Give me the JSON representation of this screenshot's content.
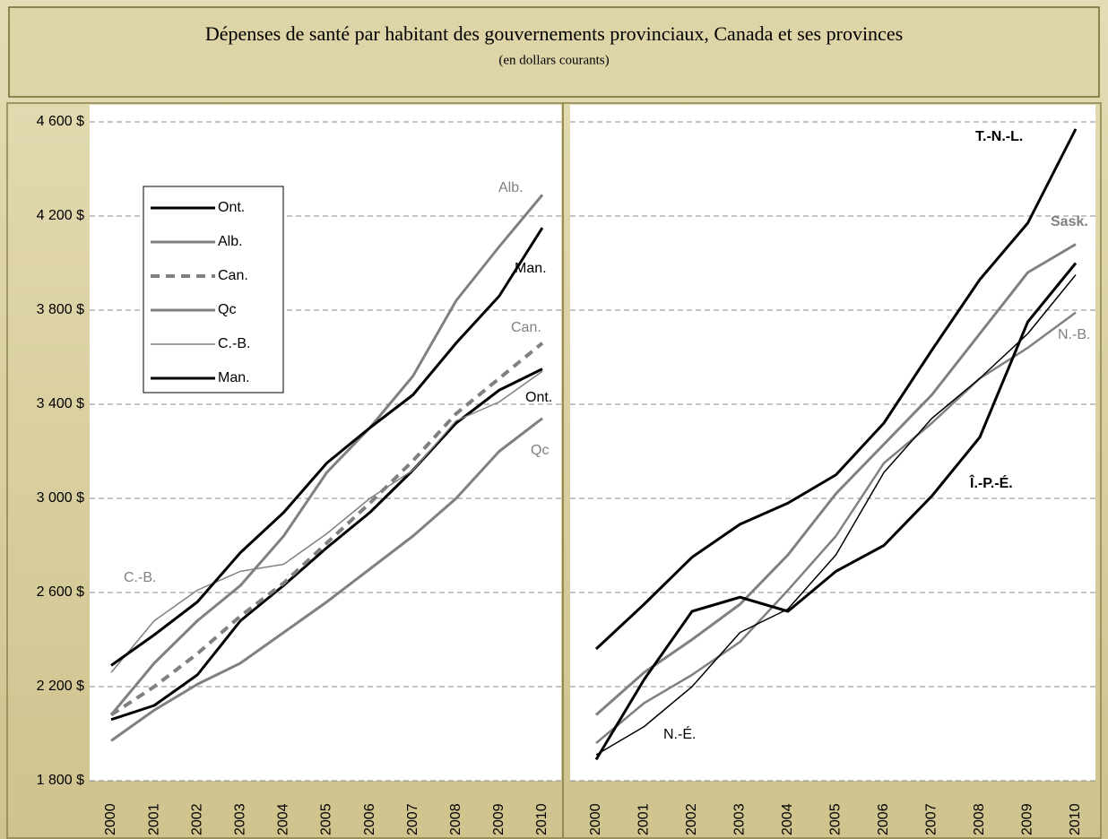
{
  "title": "Dépenses de santé par habitant des gouvernements provinciaux, Canada et ses provinces",
  "subtitle": "(en dollars courants)",
  "chart_data": [
    {
      "type": "line",
      "categories": [
        "2000",
        "2001",
        "2002",
        "2003",
        "2004",
        "2005",
        "2006",
        "2007",
        "2008",
        "2009",
        "2010"
      ],
      "ylim": [
        1800,
        4600
      ],
      "yticks": [
        {
          "value": 1800,
          "label": "1 800 $"
        },
        {
          "value": 2200,
          "label": "2 200 $"
        },
        {
          "value": 2600,
          "label": "2 600 $"
        },
        {
          "value": 3000,
          "label": "3 000 $"
        },
        {
          "value": 3400,
          "label": "3 400 $"
        },
        {
          "value": 3800,
          "label": "3 800 $"
        },
        {
          "value": 4200,
          "label": "4 200 $"
        },
        {
          "value": 4600,
          "label": "4 600 $"
        }
      ],
      "grid": true,
      "legend": true,
      "series": [
        {
          "name": "Ont.",
          "color": "#000000",
          "width": 3,
          "dash": false,
          "values": [
            2060,
            2120,
            2250,
            2480,
            2630,
            2790,
            2940,
            3120,
            3320,
            3460,
            3550
          ]
        },
        {
          "name": "Alb.",
          "color": "#808080",
          "width": 3,
          "dash": false,
          "values": [
            2080,
            2300,
            2480,
            2630,
            2840,
            3110,
            3300,
            3520,
            3840,
            4070,
            4290
          ]
        },
        {
          "name": "Can.",
          "color": "#808080",
          "width": 4,
          "dash": true,
          "values": [
            2080,
            2200,
            2340,
            2500,
            2640,
            2810,
            2980,
            3160,
            3360,
            3510,
            3660
          ]
        },
        {
          "name": "Qc",
          "color": "#808080",
          "width": 3,
          "dash": false,
          "values": [
            1970,
            2100,
            2210,
            2300,
            2430,
            2560,
            2700,
            2840,
            3000,
            3200,
            3340
          ]
        },
        {
          "name": "C.-B.",
          "color": "#808080",
          "width": 1.5,
          "dash": false,
          "values": [
            2260,
            2480,
            2610,
            2690,
            2720,
            2850,
            3000,
            3120,
            3330,
            3410,
            3540
          ]
        },
        {
          "name": "Man.",
          "color": "#000000",
          "width": 3,
          "dash": false,
          "values": [
            2290,
            2420,
            2560,
            2770,
            2940,
            3150,
            3300,
            3440,
            3660,
            3860,
            4150
          ]
        }
      ]
    },
    {
      "type": "line",
      "categories": [
        "2000",
        "2001",
        "2002",
        "2003",
        "2004",
        "2005",
        "2006",
        "2007",
        "2008",
        "2009",
        "2010"
      ],
      "ylim": [
        1800,
        4600
      ],
      "yticks": [
        1800,
        2200,
        2600,
        3000,
        3400,
        3800,
        4200,
        4600
      ],
      "grid": true,
      "legend": false,
      "series": [
        {
          "name": "T.-N.-L.",
          "color": "#000000",
          "width": 3,
          "dash": false,
          "values": [
            2360,
            2550,
            2750,
            2890,
            2980,
            3100,
            3320,
            3630,
            3930,
            4170,
            4570
          ]
        },
        {
          "name": "Sask.",
          "color": "#808080",
          "width": 3,
          "dash": false,
          "values": [
            2080,
            2260,
            2400,
            2550,
            2760,
            3020,
            3230,
            3440,
            3700,
            3960,
            4080
          ]
        },
        {
          "name": "N.-B.",
          "color": "#808080",
          "width": 2.5,
          "dash": false,
          "values": [
            1960,
            2130,
            2250,
            2390,
            2610,
            2840,
            3150,
            3320,
            3510,
            3640,
            3790
          ]
        },
        {
          "name": "Î.-P.-É.",
          "color": "#000000",
          "width": 3,
          "dash": false,
          "values": [
            1890,
            2230,
            2520,
            2580,
            2520,
            2690,
            2800,
            3010,
            3260,
            3750,
            4000
          ]
        },
        {
          "name": "N.-É.",
          "color": "#000000",
          "width": 1.5,
          "dash": false,
          "values": [
            1910,
            2030,
            2200,
            2430,
            2530,
            2760,
            3110,
            3340,
            3510,
            3700,
            3950
          ]
        }
      ]
    }
  ]
}
